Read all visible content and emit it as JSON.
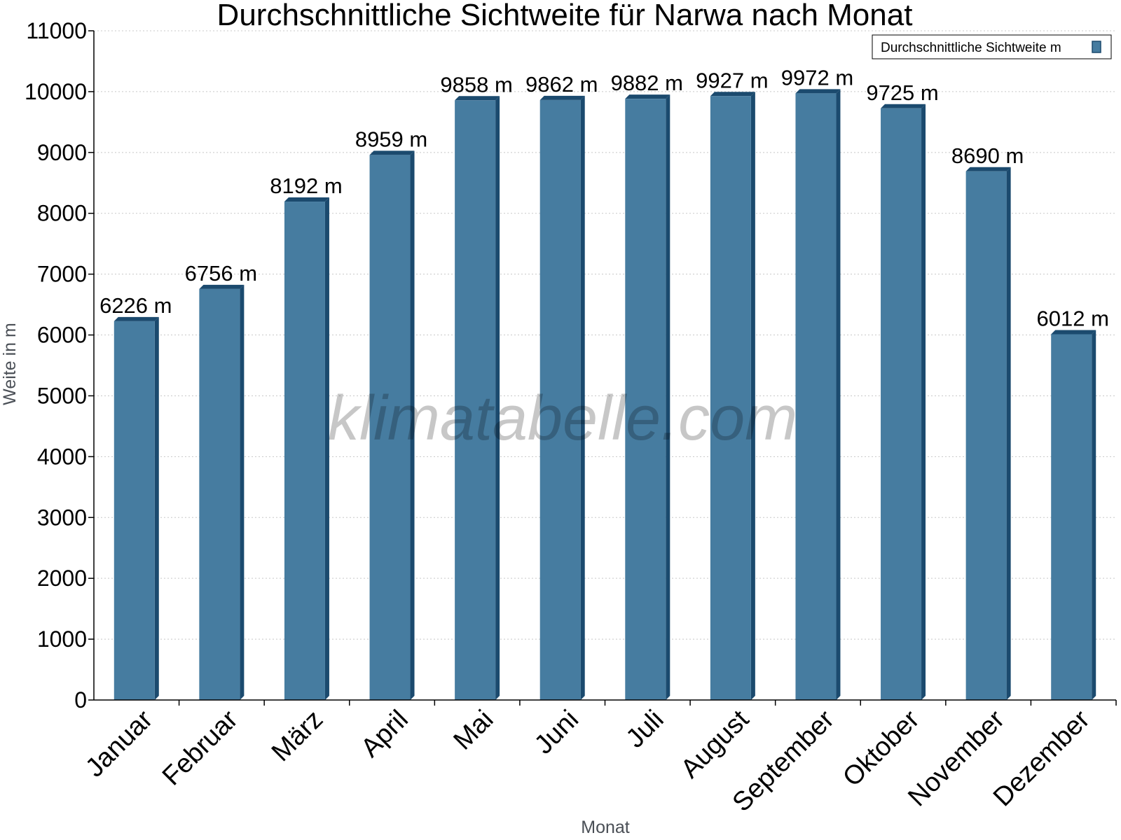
{
  "chart_data": {
    "type": "bar",
    "title": "Durchschnittliche Sichtweite für Narwa nach Monat",
    "xlabel": "Monat",
    "ylabel": "Weite in m",
    "ylim": [
      0,
      11000
    ],
    "yticks": [
      "0",
      "1000",
      "2000",
      "3000",
      "4000",
      "5000",
      "6000",
      "7000",
      "8000",
      "9000",
      "10000",
      "11000"
    ],
    "grid": true,
    "legend_position": "top-right",
    "categories": [
      "Januar",
      "Februar",
      "März",
      "April",
      "Mai",
      "Juni",
      "Juli",
      "August",
      "September",
      "Oktober",
      "November",
      "Dezember"
    ],
    "series": [
      {
        "name": "Durchschnittliche Sichtweite m",
        "values": [
          6226,
          6756,
          8192,
          8959,
          9858,
          9862,
          9882,
          9927,
          9972,
          9725,
          8690,
          6012
        ],
        "labels": [
          "6226 m",
          "6756 m",
          "8192 m",
          "8959 m",
          "9858 m",
          "9862 m",
          "9882 m",
          "9927 m",
          "9972 m",
          "9725 m",
          "8690 m",
          "6012 m"
        ],
        "color": "#467ca0",
        "edge_color": "#1b4a6e"
      }
    ],
    "watermark": "klimatabelle.com"
  }
}
